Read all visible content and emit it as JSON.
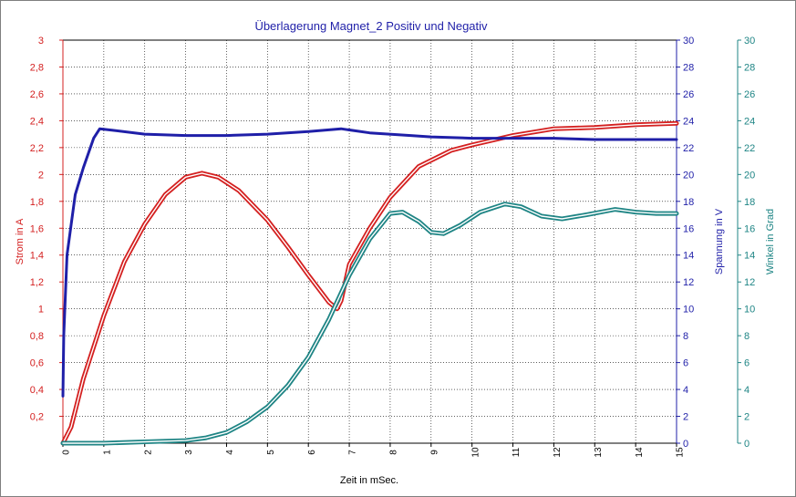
{
  "chart_data": {
    "type": "line",
    "title": "Überlagerung Magnet_2 Positiv und Negativ",
    "xlabel": "Zeit in mSec.",
    "xlim": [
      0,
      15
    ],
    "x_ticks": [
      "0",
      "1",
      "2",
      "3",
      "4",
      "5",
      "6",
      "7",
      "8",
      "9",
      "10",
      "11",
      "12",
      "13",
      "14",
      "15"
    ],
    "grid": true,
    "axes": {
      "left": {
        "label": "Strom in A",
        "range": [
          0,
          3
        ],
        "color": "#d42020",
        "ticks": [
          "0,2",
          "0,4",
          "0,6",
          "0,8",
          "1",
          "1,2",
          "1,4",
          "1,6",
          "1,8",
          "2",
          "2,2",
          "2,4",
          "2,6",
          "2,8",
          "3"
        ]
      },
      "right1": {
        "label": "Spannung in V",
        "range": [
          0,
          30
        ],
        "color": "#1f1fa8",
        "ticks": [
          "0",
          "2",
          "4",
          "6",
          "8",
          "10",
          "12",
          "14",
          "16",
          "18",
          "20",
          "22",
          "24",
          "26",
          "28",
          "30"
        ]
      },
      "right2": {
        "label": "Winkel in Grad",
        "range": [
          0,
          30
        ],
        "color": "#1f8585",
        "ticks": [
          "0",
          "2",
          "4",
          "6",
          "8",
          "10",
          "12",
          "14",
          "16",
          "18",
          "20",
          "22",
          "24",
          "26",
          "28",
          "30"
        ]
      }
    },
    "series": [
      {
        "axis": "left",
        "color": "#d42020",
        "double": true,
        "x": [
          0,
          0.2,
          0.5,
          1,
          1.5,
          2,
          2.5,
          3,
          3.4,
          3.8,
          4.3,
          5,
          5.5,
          6,
          6.5,
          6.7,
          6.8,
          7,
          7.5,
          8,
          8.7,
          9.5,
          10,
          11,
          12,
          13,
          14,
          15
        ],
        "values": [
          0,
          0.12,
          0.48,
          0.95,
          1.35,
          1.63,
          1.85,
          1.98,
          2.01,
          1.98,
          1.88,
          1.66,
          1.46,
          1.25,
          1.05,
          1.0,
          1.06,
          1.33,
          1.6,
          1.83,
          2.06,
          2.18,
          2.22,
          2.29,
          2.34,
          2.35,
          2.37,
          2.38
        ]
      },
      {
        "axis": "right1",
        "color": "#1f1fa8",
        "double": false,
        "x": [
          0,
          0.02,
          0.1,
          0.3,
          0.5,
          0.75,
          0.9,
          1.2,
          2,
          3,
          4,
          5,
          6,
          6.8,
          7.5,
          8.5,
          9,
          10,
          11,
          12,
          13,
          14,
          15
        ],
        "values": [
          3.5,
          8,
          14,
          18.5,
          20.5,
          22.7,
          23.4,
          23.3,
          23.0,
          22.9,
          22.9,
          23.0,
          23.2,
          23.4,
          23.1,
          22.9,
          22.8,
          22.7,
          22.7,
          22.7,
          22.6,
          22.6,
          22.6
        ]
      },
      {
        "axis": "right2",
        "color": "#1f8585",
        "double": true,
        "x": [
          0,
          1,
          2,
          3,
          3.5,
          4,
          4.5,
          5,
          5.5,
          6,
          6.5,
          7,
          7.5,
          8,
          8.3,
          8.7,
          9,
          9.3,
          9.7,
          10.2,
          10.8,
          11.2,
          11.7,
          12.2,
          12.8,
          13.5,
          14,
          14.5,
          15
        ],
        "values": [
          0,
          0,
          0.1,
          0.2,
          0.4,
          0.8,
          1.6,
          2.7,
          4.3,
          6.4,
          9.2,
          12.5,
          15.2,
          17.1,
          17.2,
          16.5,
          15.7,
          15.6,
          16.2,
          17.2,
          17.8,
          17.6,
          16.9,
          16.7,
          17.0,
          17.4,
          17.2,
          17.1,
          17.1
        ]
      }
    ]
  }
}
